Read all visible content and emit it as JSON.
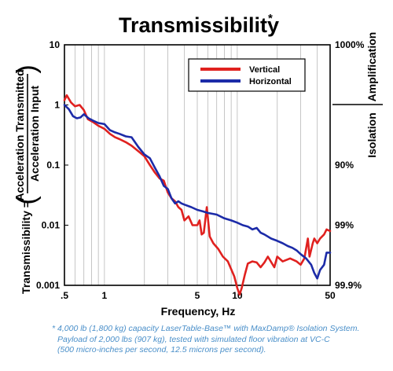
{
  "chart_data": {
    "type": "line",
    "title": "Transmissibility",
    "title_mark": "*",
    "xlabel": "Frequency, Hz",
    "ylabel": "Transmissibility =",
    "ylabel_fraction": {
      "numerator": "Acceleration Transmitted",
      "denominator": "Acceleration Input"
    },
    "x_scale": "log",
    "y_scale": "log",
    "xlim": [
      0.5,
      50
    ],
    "ylim": [
      0.001,
      10
    ],
    "x_ticks": [
      {
        "value": 0.5,
        "label": ".5"
      },
      {
        "value": 1,
        "label": "1"
      },
      {
        "value": 5,
        "label": "5"
      },
      {
        "value": 10,
        "label": "10"
      },
      {
        "value": 50,
        "label": "50"
      }
    ],
    "y_ticks": [
      {
        "value": 10,
        "label": "10"
      },
      {
        "value": 1,
        "label": "1"
      },
      {
        "value": 0.1,
        "label": "0.1"
      },
      {
        "value": 0.01,
        "label": "0.01"
      },
      {
        "value": 0.001,
        "label": "0.001"
      }
    ],
    "right_axis": {
      "label_top": "Amplification",
      "label_bottom": "Isolation",
      "ticks": [
        {
          "value": 10,
          "label": "1000%"
        },
        {
          "value": 0.1,
          "label": "90%"
        },
        {
          "value": 0.01,
          "label": "99%"
        },
        {
          "value": 0.001,
          "label": "99.9%"
        }
      ]
    },
    "grid": "vertical",
    "legend_position": "top-right",
    "series": [
      {
        "name": "Vertical",
        "color": "#e0211f",
        "points": [
          [
            0.5,
            1.2
          ],
          [
            0.52,
            1.45
          ],
          [
            0.56,
            1.1
          ],
          [
            0.6,
            0.95
          ],
          [
            0.65,
            1.0
          ],
          [
            0.7,
            0.82
          ],
          [
            0.75,
            0.58
          ],
          [
            0.82,
            0.52
          ],
          [
            0.9,
            0.45
          ],
          [
            1.0,
            0.4
          ],
          [
            1.1,
            0.33
          ],
          [
            1.2,
            0.29
          ],
          [
            1.3,
            0.27
          ],
          [
            1.45,
            0.24
          ],
          [
            1.6,
            0.21
          ],
          [
            1.8,
            0.17
          ],
          [
            2.0,
            0.14
          ],
          [
            2.2,
            0.1
          ],
          [
            2.4,
            0.075
          ],
          [
            2.6,
            0.06
          ],
          [
            2.8,
            0.055
          ],
          [
            3.0,
            0.035
          ],
          [
            3.2,
            0.028
          ],
          [
            3.4,
            0.025
          ],
          [
            3.6,
            0.02
          ],
          [
            3.8,
            0.018
          ],
          [
            4.0,
            0.012
          ],
          [
            4.3,
            0.014
          ],
          [
            4.6,
            0.01
          ],
          [
            5.0,
            0.01
          ],
          [
            5.2,
            0.012
          ],
          [
            5.4,
            0.007
          ],
          [
            5.6,
            0.0075
          ],
          [
            5.9,
            0.02
          ],
          [
            6.2,
            0.0065
          ],
          [
            6.6,
            0.005
          ],
          [
            7.2,
            0.004
          ],
          [
            7.8,
            0.003
          ],
          [
            8.5,
            0.0025
          ],
          [
            9.5,
            0.0014
          ],
          [
            10,
            0.0009
          ],
          [
            10.4,
            0.0007
          ],
          [
            10.8,
            0.0009
          ],
          [
            11.4,
            0.0015
          ],
          [
            12,
            0.0023
          ],
          [
            13,
            0.0025
          ],
          [
            14,
            0.0024
          ],
          [
            15,
            0.002
          ],
          [
            16,
            0.0024
          ],
          [
            17,
            0.003
          ],
          [
            19,
            0.002
          ],
          [
            20,
            0.003
          ],
          [
            22,
            0.0025
          ],
          [
            25,
            0.0028
          ],
          [
            28,
            0.0025
          ],
          [
            30,
            0.0022
          ],
          [
            32,
            0.0028
          ],
          [
            34,
            0.006
          ],
          [
            35,
            0.003
          ],
          [
            37,
            0.005
          ],
          [
            38,
            0.006
          ],
          [
            40,
            0.005
          ],
          [
            42,
            0.006
          ],
          [
            45,
            0.007
          ],
          [
            47,
            0.0085
          ],
          [
            50,
            0.008
          ]
        ]
      },
      {
        "name": "Horizontal",
        "color": "#1c2ba8",
        "points": [
          [
            0.5,
            1.0
          ],
          [
            0.54,
            0.85
          ],
          [
            0.58,
            0.65
          ],
          [
            0.62,
            0.6
          ],
          [
            0.66,
            0.62
          ],
          [
            0.7,
            0.7
          ],
          [
            0.76,
            0.6
          ],
          [
            0.82,
            0.55
          ],
          [
            0.9,
            0.5
          ],
          [
            1.0,
            0.48
          ],
          [
            1.1,
            0.38
          ],
          [
            1.2,
            0.35
          ],
          [
            1.3,
            0.33
          ],
          [
            1.45,
            0.3
          ],
          [
            1.6,
            0.29
          ],
          [
            1.8,
            0.2
          ],
          [
            2.0,
            0.15
          ],
          [
            2.2,
            0.13
          ],
          [
            2.4,
            0.09
          ],
          [
            2.6,
            0.065
          ],
          [
            2.8,
            0.045
          ],
          [
            3.0,
            0.04
          ],
          [
            3.2,
            0.028
          ],
          [
            3.4,
            0.023
          ],
          [
            3.6,
            0.025
          ],
          [
            3.8,
            0.023
          ],
          [
            4.0,
            0.022
          ],
          [
            4.5,
            0.02
          ],
          [
            5.0,
            0.018
          ],
          [
            5.5,
            0.017
          ],
          [
            6.0,
            0.016
          ],
          [
            7.0,
            0.015
          ],
          [
            8.0,
            0.013
          ],
          [
            9.0,
            0.012
          ],
          [
            10,
            0.011
          ],
          [
            11,
            0.01
          ],
          [
            12,
            0.0095
          ],
          [
            13,
            0.0085
          ],
          [
            14,
            0.009
          ],
          [
            15,
            0.0075
          ],
          [
            16,
            0.007
          ],
          [
            18,
            0.006
          ],
          [
            20,
            0.0055
          ],
          [
            22,
            0.005
          ],
          [
            24,
            0.0045
          ],
          [
            26,
            0.0042
          ],
          [
            28,
            0.0038
          ],
          [
            30,
            0.0033
          ],
          [
            33,
            0.0028
          ],
          [
            36,
            0.0022
          ],
          [
            38,
            0.0016
          ],
          [
            40,
            0.0013
          ],
          [
            42,
            0.0018
          ],
          [
            45,
            0.0022
          ],
          [
            47,
            0.0035
          ],
          [
            50,
            0.0035
          ]
        ]
      }
    ]
  },
  "footnote": {
    "lines": [
      "* 4,000 lb (1,800 kg) capacity LaserTable-Base™ with MaxDamp® Isolation System.",
      "Payload of 2,000 lbs (907 kg), tested with simulated floor vibration at VC-C",
      "(500 micro-inches per second, 12.5 microns per second)."
    ]
  }
}
